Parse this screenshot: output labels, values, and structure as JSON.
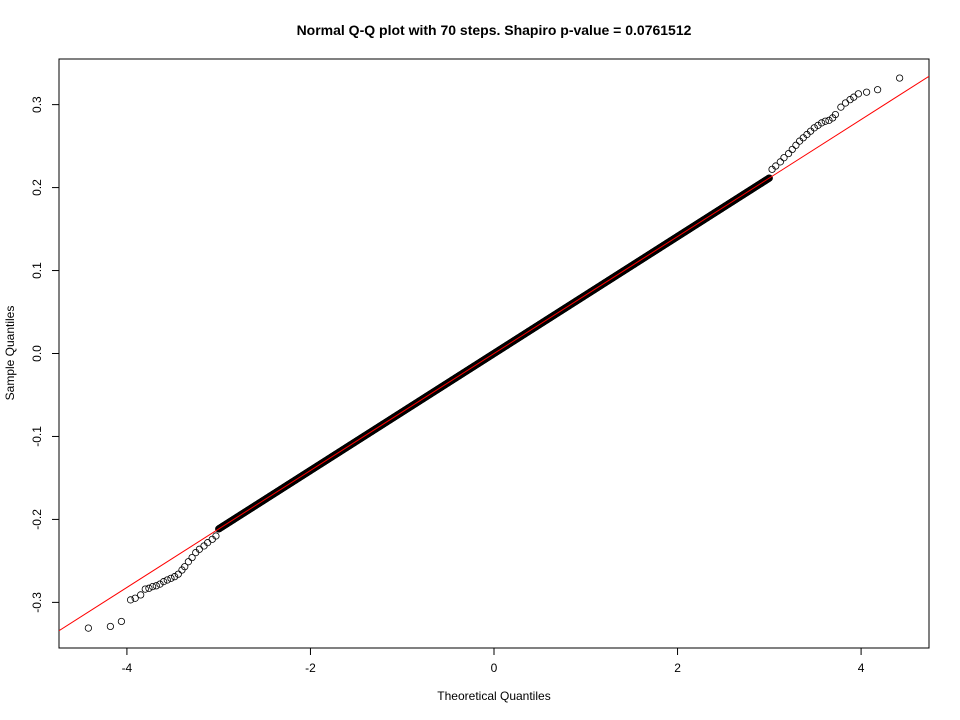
{
  "chart_data": {
    "type": "scatter",
    "title": "Normal Q-Q plot with 70 steps. Shapiro p-value = 0.0761512",
    "xlabel": "Theoretical Quantiles",
    "ylabel": "Sample Quantiles",
    "xlim": [
      -4.74,
      4.74
    ],
    "ylim": [
      -0.355,
      0.355
    ],
    "x_ticks": [
      -4,
      -2,
      0,
      2,
      4
    ],
    "x_tick_labels": [
      "-4",
      "-2",
      "0",
      "2",
      "4"
    ],
    "y_ticks": [
      -0.3,
      -0.2,
      -0.1,
      0.0,
      0.1,
      0.2,
      0.3
    ],
    "y_tick_labels": [
      "-0.3",
      "-0.2",
      "-0.1",
      "0.0",
      "0.1",
      "0.2",
      "0.3"
    ],
    "grid": false,
    "reference_line": {
      "intercept": 0.0,
      "slope": 0.0705,
      "color": "#ff0000"
    },
    "body": {
      "x_range": [
        -3.0,
        3.0
      ],
      "slope": 0.0705,
      "points": 1600
    },
    "tail_points": [
      [
        -4.42,
        -0.331
      ],
      [
        -4.18,
        -0.329
      ],
      [
        -4.06,
        -0.323
      ],
      [
        -3.96,
        -0.297
      ],
      [
        -3.91,
        -0.295
      ],
      [
        -3.85,
        -0.291
      ],
      [
        -3.8,
        -0.284
      ],
      [
        -3.76,
        -0.283
      ],
      [
        -3.72,
        -0.281
      ],
      [
        -3.68,
        -0.28
      ],
      [
        -3.64,
        -0.278
      ],
      [
        -3.6,
        -0.275
      ],
      [
        -3.56,
        -0.273
      ],
      [
        -3.52,
        -0.271
      ],
      [
        -3.48,
        -0.269
      ],
      [
        -3.44,
        -0.266
      ],
      [
        -3.4,
        -0.261
      ],
      [
        -3.37,
        -0.257
      ],
      [
        -3.33,
        -0.251
      ],
      [
        -3.29,
        -0.246
      ],
      [
        -3.25,
        -0.24
      ],
      [
        -3.21,
        -0.236
      ],
      [
        -3.16,
        -0.232
      ],
      [
        -3.12,
        -0.228
      ],
      [
        -3.07,
        -0.224
      ],
      [
        -3.03,
        -0.22
      ],
      [
        3.03,
        0.222
      ],
      [
        3.07,
        0.226
      ],
      [
        3.12,
        0.231
      ],
      [
        3.16,
        0.236
      ],
      [
        3.21,
        0.241
      ],
      [
        3.25,
        0.246
      ],
      [
        3.29,
        0.251
      ],
      [
        3.33,
        0.256
      ],
      [
        3.37,
        0.26
      ],
      [
        3.41,
        0.264
      ],
      [
        3.45,
        0.268
      ],
      [
        3.49,
        0.272
      ],
      [
        3.53,
        0.275
      ],
      [
        3.57,
        0.278
      ],
      [
        3.61,
        0.28
      ],
      [
        3.65,
        0.281
      ],
      [
        3.69,
        0.284
      ],
      [
        3.72,
        0.288
      ],
      [
        3.78,
        0.297
      ],
      [
        3.83,
        0.302
      ],
      [
        3.88,
        0.306
      ],
      [
        3.92,
        0.309
      ],
      [
        3.97,
        0.313
      ],
      [
        4.06,
        0.315
      ],
      [
        4.18,
        0.318
      ],
      [
        4.42,
        0.332
      ]
    ]
  }
}
